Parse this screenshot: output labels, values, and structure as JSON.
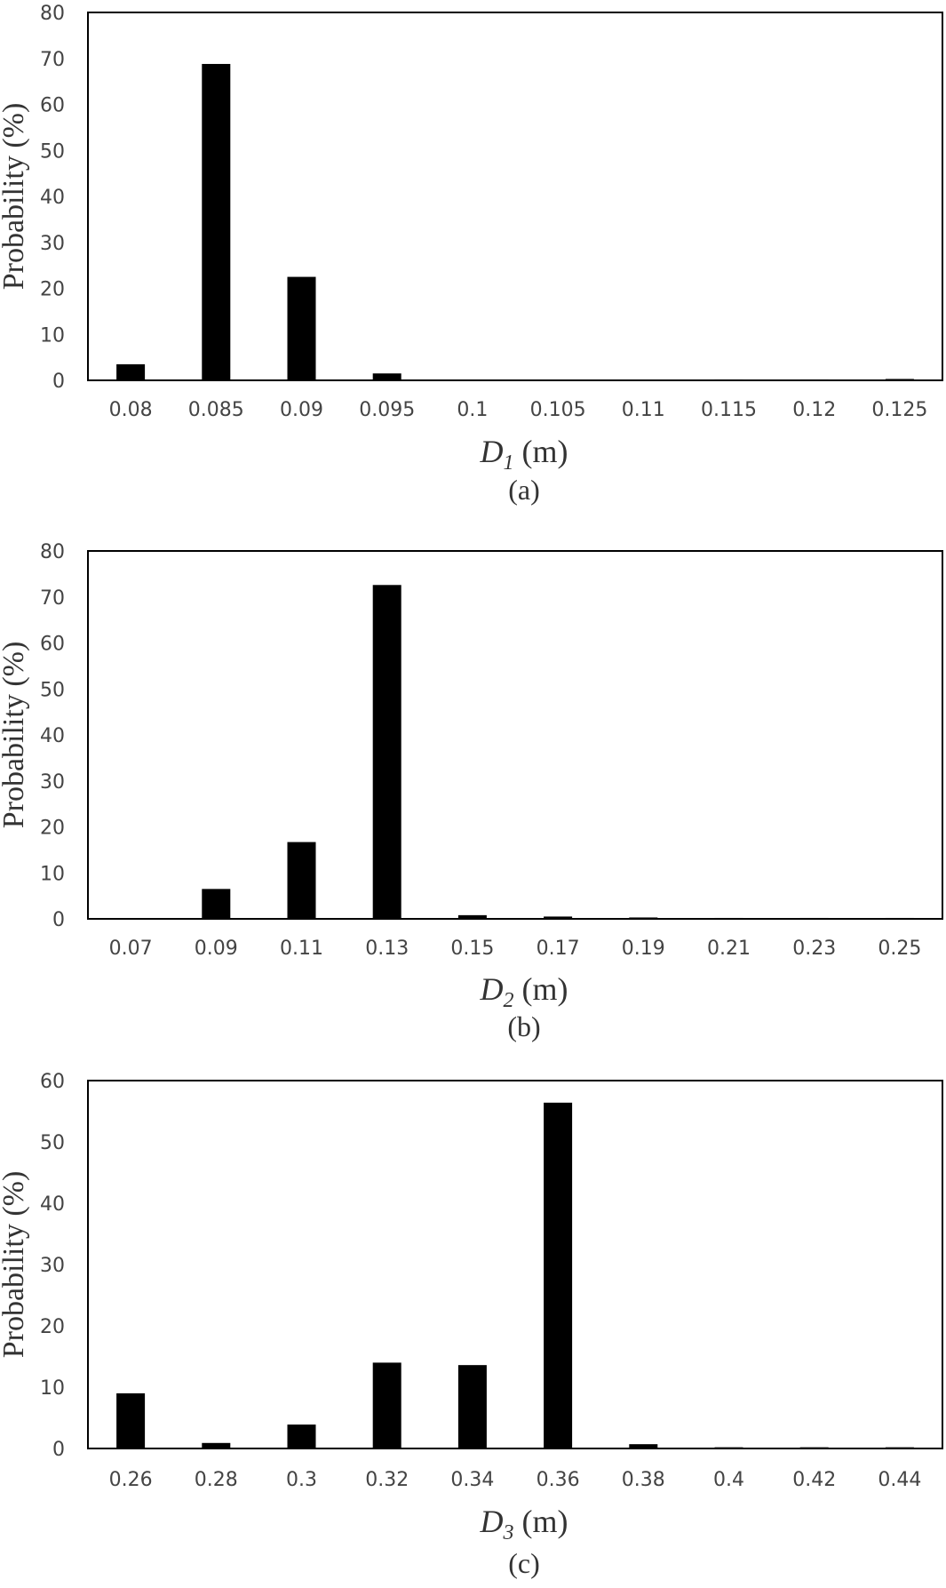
{
  "chart_data": [
    {
      "type": "bar",
      "panel": "a",
      "categories": [
        "0.08",
        "0.085",
        "0.09",
        "0.095",
        "0.1",
        "0.105",
        "0.11",
        "0.115",
        "0.12",
        "0.125"
      ],
      "values": [
        3.5,
        68.8,
        22.5,
        1.5,
        0.1,
        0.1,
        0.1,
        0.2,
        0.2,
        0.3
      ],
      "ylim": [
        0,
        80
      ],
      "yticks": [
        "0",
        "10",
        "20",
        "30",
        "40",
        "50",
        "60",
        "70",
        "80"
      ],
      "ylabel": "Probability (%)",
      "xlabel_symbol": "D",
      "xlabel_subscript": "1",
      "xlabel_unit": " (m)",
      "caption": "(a)",
      "bar_color": "#000000",
      "grid": false
    },
    {
      "type": "bar",
      "panel": "b",
      "categories": [
        "0.07",
        "0.09",
        "0.11",
        "0.13",
        "0.15",
        "0.17",
        "0.19",
        "0.21",
        "0.23",
        "0.25"
      ],
      "values": [
        0.1,
        6.5,
        16.7,
        72.6,
        0.8,
        0.5,
        0.3,
        0.2,
        0.2,
        0.2
      ],
      "ylim": [
        0,
        80
      ],
      "yticks": [
        "0",
        "10",
        "20",
        "30",
        "40",
        "50",
        "60",
        "70",
        "80"
      ],
      "ylabel": "Probability (%)",
      "xlabel_symbol": "D",
      "xlabel_subscript": "2",
      "xlabel_unit": " (m)",
      "caption": "(b)",
      "bar_color": "#000000",
      "grid": false
    },
    {
      "type": "bar",
      "panel": "c",
      "categories": [
        "0.26",
        "0.28",
        "0.3",
        "0.32",
        "0.34",
        "0.36",
        "0.38",
        "0.4",
        "0.42",
        "0.44"
      ],
      "values": [
        9.0,
        0.9,
        3.9,
        14.0,
        13.6,
        56.4,
        0.7,
        0.2,
        0.2,
        0.2
      ],
      "ylim": [
        0,
        60
      ],
      "yticks": [
        "0",
        "10",
        "20",
        "30",
        "40",
        "50",
        "60"
      ],
      "ylabel": "Probability (%)",
      "xlabel_symbol": "D",
      "xlabel_subscript": "3",
      "xlabel_unit": " (m)",
      "caption": "(c)",
      "bar_color": "#000000",
      "grid": false
    }
  ]
}
